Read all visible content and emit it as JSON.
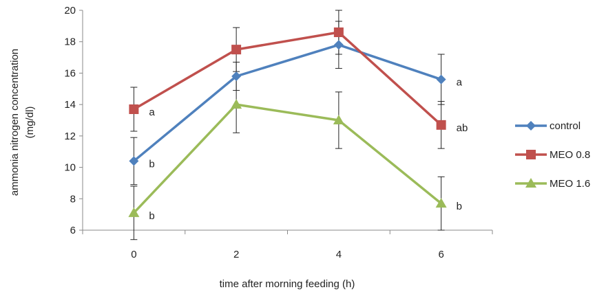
{
  "chart_data": {
    "type": "line",
    "x": [
      0,
      2,
      4,
      6
    ],
    "xlabel": "time after morning feeding (h)",
    "ylabel": "ammonia nitrogen concentration",
    "ylabel_unit": "(mg/dl)",
    "xlim": [
      -1,
      7
    ],
    "ylim": [
      6,
      20
    ],
    "yticks": [
      6,
      8,
      10,
      12,
      14,
      16,
      18,
      20
    ],
    "xticks": [
      0,
      2,
      4,
      6
    ],
    "grid": false,
    "legend_position": "right",
    "series": [
      {
        "name": "control",
        "color": "#4F81BD",
        "marker": "diamond",
        "values": [
          10.4,
          15.8,
          17.8,
          15.6
        ],
        "errors": [
          1.5,
          0.9,
          1.5,
          1.6
        ],
        "sig_labels": [
          "b",
          "",
          "",
          "a"
        ]
      },
      {
        "name": "MEO 0.8",
        "color": "#C0504D",
        "marker": "square",
        "values": [
          13.7,
          17.5,
          18.6,
          12.7
        ],
        "errors": [
          1.4,
          1.4,
          1.4,
          1.5
        ],
        "sig_labels": [
          "a",
          "",
          "",
          "ab"
        ]
      },
      {
        "name": "MEO 1.6",
        "color": "#9BBB59",
        "marker": "triangle",
        "values": [
          7.1,
          14.0,
          13.0,
          7.7
        ],
        "errors": [
          1.7,
          1.8,
          1.8,
          1.7
        ],
        "sig_labels": [
          "b",
          "",
          "",
          "b"
        ]
      }
    ]
  }
}
